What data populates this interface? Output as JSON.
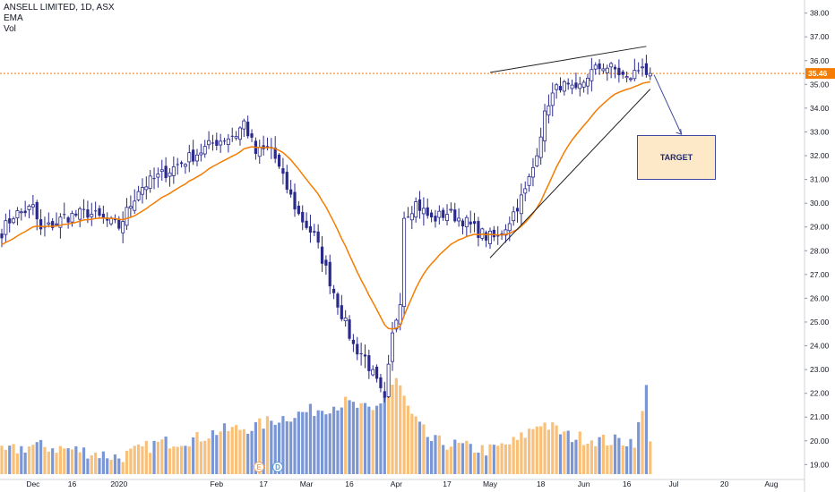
{
  "header": {
    "title": "ANSELL LIMITED, 1D, ASX",
    "indicator_ema": "EMA",
    "indicator_vol": "Vol"
  },
  "annotations": {
    "target_label": "TARGET",
    "price_label": "35.46",
    "event_e": "E",
    "event_d": "D"
  },
  "colors": {
    "candle": "#2a2a8c",
    "ema": "#f57c00",
    "vol_up": "#f9c07a",
    "vol_down": "#7b96d4",
    "price_line": "#f57c00",
    "trend_lines": "#222222",
    "target_box_fill": "#fde8c8",
    "target_box_border": "#3f4ba0"
  },
  "chart_data": {
    "type": "candlestick",
    "title": "ANSELL LIMITED, 1D, ASX",
    "ylim": [
      18.6,
      38.4
    ],
    "y_ticks": [
      "19.00",
      "20.00",
      "21.00",
      "22.00",
      "23.00",
      "24.00",
      "25.00",
      "26.00",
      "27.00",
      "28.00",
      "29.00",
      "30.00",
      "31.00",
      "32.00",
      "33.00",
      "34.00",
      "35.00",
      "36.00",
      "37.00",
      "38.00"
    ],
    "x_labels": [
      {
        "label": "Dec",
        "bar": 8
      },
      {
        "label": "16",
        "bar": 18
      },
      {
        "label": "2020",
        "bar": 30
      },
      {
        "label": "Feb",
        "bar": 55
      },
      {
        "label": "17",
        "bar": 67
      },
      {
        "label": "Mar",
        "bar": 78
      },
      {
        "label": "16",
        "bar": 89
      },
      {
        "label": "Apr",
        "bar": 101
      },
      {
        "label": "17",
        "bar": 114
      },
      {
        "label": "May",
        "bar": 125
      },
      {
        "label": "18",
        "bar": 138
      },
      {
        "label": "Jun",
        "bar": 149
      },
      {
        "label": "16",
        "bar": 160
      },
      {
        "label": "Jul",
        "bar": 172
      },
      {
        "label": "20",
        "bar": 185
      },
      {
        "label": "Aug",
        "bar": 197
      }
    ],
    "last_price": 35.46,
    "anchors": [
      [
        0,
        28.8
      ],
      [
        3,
        29.5
      ],
      [
        8,
        29.8
      ],
      [
        10,
        28.8
      ],
      [
        16,
        29.4
      ],
      [
        22,
        29.6
      ],
      [
        30,
        29.0
      ],
      [
        35,
        30.6
      ],
      [
        42,
        31.3
      ],
      [
        50,
        32.1
      ],
      [
        55,
        32.6
      ],
      [
        60,
        32.9
      ],
      [
        62,
        33.4
      ],
      [
        65,
        32.1
      ],
      [
        69,
        32.3
      ],
      [
        72,
        31.0
      ],
      [
        76,
        29.5
      ],
      [
        80,
        28.6
      ],
      [
        83,
        27.2
      ],
      [
        86,
        25.8
      ],
      [
        90,
        24.0
      ],
      [
        93,
        23.5
      ],
      [
        96,
        22.4
      ],
      [
        98,
        21.6
      ],
      [
        100,
        24.4
      ],
      [
        102,
        26.0
      ],
      [
        103,
        29.5
      ],
      [
        106,
        30.0
      ],
      [
        110,
        29.3
      ],
      [
        114,
        29.6
      ],
      [
        118,
        29.3
      ],
      [
        121,
        28.9
      ],
      [
        124,
        28.6
      ],
      [
        127,
        28.5
      ],
      [
        130,
        29.3
      ],
      [
        134,
        30.5
      ],
      [
        136,
        31.5
      ],
      [
        138,
        33.0
      ],
      [
        140,
        34.3
      ],
      [
        143,
        35.0
      ],
      [
        147,
        34.6
      ],
      [
        150,
        35.4
      ],
      [
        154,
        35.8
      ],
      [
        157,
        35.6
      ],
      [
        160,
        35.2
      ],
      [
        163,
        35.6
      ],
      [
        164,
        35.9
      ],
      [
        166,
        35.1
      ]
    ],
    "volume_anchors": [
      [
        0,
        19.5
      ],
      [
        8,
        19.8
      ],
      [
        20,
        19.6
      ],
      [
        30,
        19.3
      ],
      [
        40,
        19.9
      ],
      [
        50,
        20.1
      ],
      [
        55,
        20.4
      ],
      [
        65,
        20.6
      ],
      [
        70,
        20.9
      ],
      [
        80,
        21.3
      ],
      [
        88,
        21.6
      ],
      [
        95,
        21.2
      ],
      [
        101,
        22.6
      ],
      [
        105,
        21.0
      ],
      [
        110,
        20.0
      ],
      [
        120,
        19.7
      ],
      [
        125,
        19.6
      ],
      [
        132,
        20.0
      ],
      [
        138,
        20.8
      ],
      [
        145,
        20.2
      ],
      [
        155,
        20.0
      ],
      [
        162,
        20.0
      ],
      [
        164,
        21.2
      ],
      [
        165,
        22.2
      ],
      [
        166,
        20.2
      ]
    ],
    "vol_ylim": [
      18.6,
      38.4
    ],
    "ema_period": 20,
    "trendlines": [
      {
        "name": "upper",
        "from": [
          125,
          35.5
        ],
        "to": [
          165,
          36.6
        ]
      },
      {
        "name": "lower",
        "from": [
          125,
          27.7
        ],
        "to": [
          166,
          34.8
        ]
      }
    ],
    "arrow": {
      "from": [
        167,
        35.4
      ],
      "to": [
        174,
        32.9
      ]
    },
    "target_box": {
      "label": "TARGET",
      "x_range": [
        170,
        190
      ],
      "y_range": [
        30.95,
        32.85
      ]
    },
    "grid": false,
    "legend": "top-left"
  }
}
